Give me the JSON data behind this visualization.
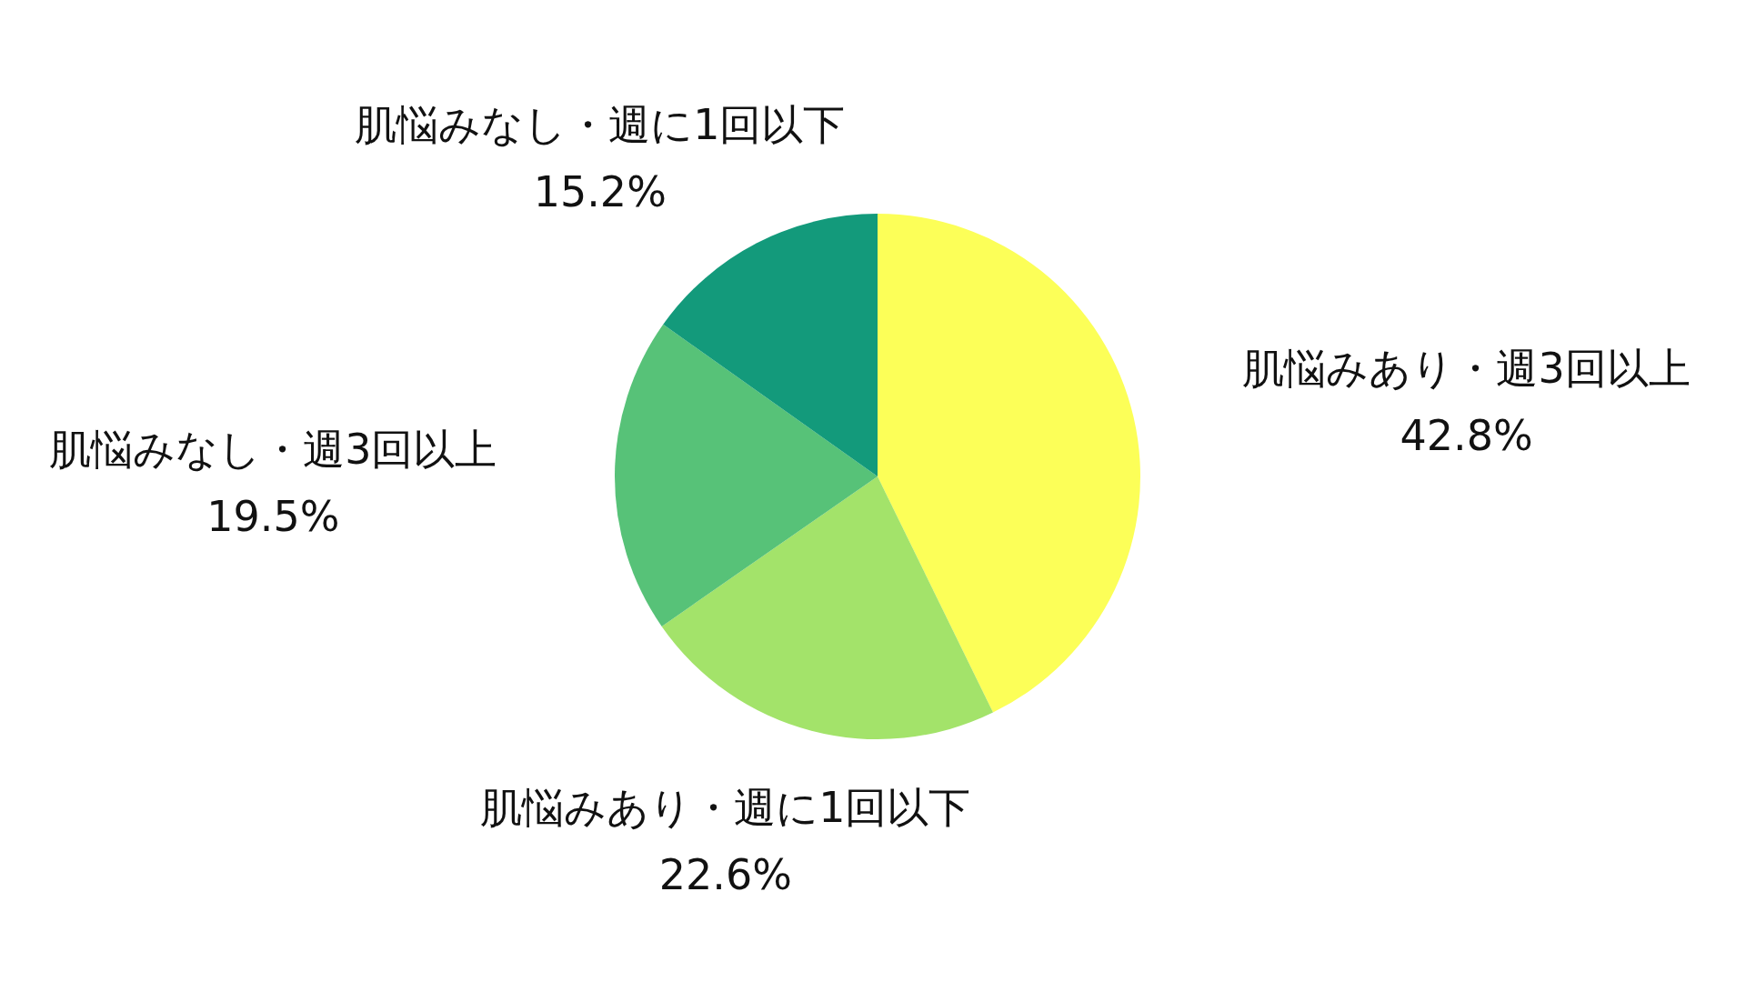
{
  "chart_data": {
    "type": "pie",
    "categories": [
      "肌悩みあり・週3回以上",
      "肌悩みあり・週に1回以下",
      "肌悩みなし・週3回以上",
      "肌悩みなし・週に1回以下"
    ],
    "values": [
      42.8,
      22.6,
      19.5,
      15.2
    ],
    "value_labels": [
      "42.8%",
      "22.6%",
      "19.5%",
      "15.2%"
    ],
    "colors": [
      "#fcff58",
      "#a3e36a",
      "#57c278",
      "#139a7b"
    ]
  }
}
